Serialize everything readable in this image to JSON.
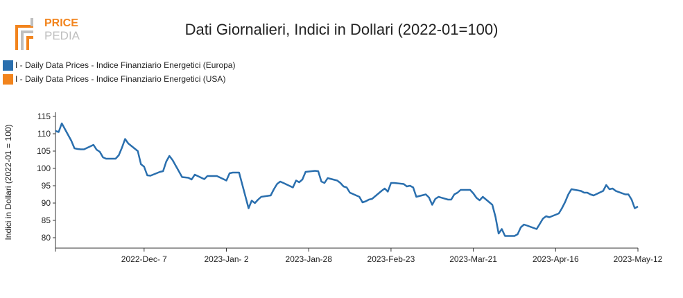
{
  "brand": {
    "line1": "PRICE",
    "line2": "PEDIA"
  },
  "chart_data": {
    "type": "line",
    "title": "Dati Giornalieri, Indici in Dollari (2022-01=100)",
    "ylabel": "Indici in Dollari (2022-01 = 100)",
    "xlabel": "",
    "ylim": [
      77,
      115
    ],
    "yticks": [
      80,
      85,
      90,
      95,
      100,
      105,
      110,
      115
    ],
    "xlim": [
      "2022-11-09",
      "2023-05-12"
    ],
    "xticks": [
      {
        "date": "2022-12-07",
        "label": "2022-Dec- 7"
      },
      {
        "date": "2023-01-02",
        "label": "2023-Jan- 2"
      },
      {
        "date": "2023-01-28",
        "label": "2023-Jan-28"
      },
      {
        "date": "2023-02-23",
        "label": "2023-Feb-23"
      },
      {
        "date": "2023-03-21",
        "label": "2023-Mar-21"
      },
      {
        "date": "2023-04-16",
        "label": "2023-Apr-16"
      },
      {
        "date": "2023-05-12",
        "label": "2023-May-12"
      }
    ],
    "legend_position": "top-left",
    "grid": false,
    "series": [
      {
        "name": "I - Daily Data Prices - Indice Finanziario Energetici (Europa)",
        "color": "#2a6fae",
        "points": [
          [
            "2022-11-09",
            110.8
          ],
          [
            "2022-11-10",
            110.5
          ],
          [
            "2022-11-11",
            113.0
          ],
          [
            "2022-11-14",
            108.0
          ],
          [
            "2022-11-15",
            105.8
          ],
          [
            "2022-11-16",
            105.6
          ],
          [
            "2022-11-17",
            105.5
          ],
          [
            "2022-11-18",
            105.5
          ],
          [
            "2022-11-21",
            106.8
          ],
          [
            "2022-11-22",
            105.4
          ],
          [
            "2022-11-23",
            104.8
          ],
          [
            "2022-11-24",
            103.2
          ],
          [
            "2022-11-25",
            102.8
          ],
          [
            "2022-11-28",
            102.8
          ],
          [
            "2022-11-29",
            103.8
          ],
          [
            "2022-11-30",
            106.0
          ],
          [
            "2022-12-01",
            108.5
          ],
          [
            "2022-12-02",
            107.2
          ],
          [
            "2022-12-05",
            105.0
          ],
          [
            "2022-12-06",
            101.2
          ],
          [
            "2022-12-07",
            100.5
          ],
          [
            "2022-12-08",
            98.0
          ],
          [
            "2022-12-09",
            97.9
          ],
          [
            "2022-12-12",
            99.0
          ],
          [
            "2022-12-13",
            99.2
          ],
          [
            "2022-12-14",
            102.0
          ],
          [
            "2022-12-15",
            103.6
          ],
          [
            "2022-12-16",
            102.4
          ],
          [
            "2022-12-19",
            97.5
          ],
          [
            "2022-12-20",
            97.4
          ],
          [
            "2022-12-21",
            97.3
          ],
          [
            "2022-12-22",
            96.8
          ],
          [
            "2022-12-23",
            98.2
          ],
          [
            "2022-12-26",
            96.9
          ],
          [
            "2022-12-27",
            97.8
          ],
          [
            "2022-12-28",
            97.8
          ],
          [
            "2022-12-29",
            97.8
          ],
          [
            "2022-12-30",
            97.8
          ],
          [
            "2023-01-02",
            96.5
          ],
          [
            "2023-01-03",
            98.6
          ],
          [
            "2023-01-04",
            98.8
          ],
          [
            "2023-01-05",
            98.8
          ],
          [
            "2023-01-06",
            98.8
          ],
          [
            "2023-01-09",
            88.5
          ],
          [
            "2023-01-10",
            90.7
          ],
          [
            "2023-01-11",
            90.0
          ],
          [
            "2023-01-12",
            91.0
          ],
          [
            "2023-01-13",
            91.8
          ],
          [
            "2023-01-16",
            92.2
          ],
          [
            "2023-01-17",
            94.0
          ],
          [
            "2023-01-18",
            95.5
          ],
          [
            "2023-01-19",
            96.2
          ],
          [
            "2023-01-20",
            95.8
          ],
          [
            "2023-01-23",
            94.5
          ],
          [
            "2023-01-24",
            96.5
          ],
          [
            "2023-01-25",
            96.0
          ],
          [
            "2023-01-26",
            96.8
          ],
          [
            "2023-01-27",
            99.0
          ],
          [
            "2023-01-30",
            99.3
          ],
          [
            "2023-01-31",
            99.2
          ],
          [
            "2023-02-01",
            96.2
          ],
          [
            "2023-02-02",
            95.8
          ],
          [
            "2023-02-03",
            97.2
          ],
          [
            "2023-02-06",
            96.5
          ],
          [
            "2023-02-07",
            95.8
          ],
          [
            "2023-02-08",
            94.8
          ],
          [
            "2023-02-09",
            94.5
          ],
          [
            "2023-02-10",
            93.0
          ],
          [
            "2023-02-13",
            91.8
          ],
          [
            "2023-02-14",
            90.2
          ],
          [
            "2023-02-15",
            90.5
          ],
          [
            "2023-02-16",
            91.0
          ],
          [
            "2023-02-17",
            91.2
          ],
          [
            "2023-02-20",
            93.5
          ],
          [
            "2023-02-21",
            94.2
          ],
          [
            "2023-02-22",
            93.3
          ],
          [
            "2023-02-23",
            95.8
          ],
          [
            "2023-02-24",
            95.8
          ],
          [
            "2023-02-27",
            95.5
          ],
          [
            "2023-02-28",
            94.8
          ],
          [
            "2023-03-01",
            95.0
          ],
          [
            "2023-03-02",
            94.5
          ],
          [
            "2023-03-03",
            91.8
          ],
          [
            "2023-03-06",
            92.5
          ],
          [
            "2023-03-07",
            91.6
          ],
          [
            "2023-03-08",
            89.5
          ],
          [
            "2023-03-09",
            91.2
          ],
          [
            "2023-03-10",
            91.8
          ],
          [
            "2023-03-13",
            91.0
          ],
          [
            "2023-03-14",
            91.0
          ],
          [
            "2023-03-15",
            92.5
          ],
          [
            "2023-03-16",
            93.0
          ],
          [
            "2023-03-17",
            93.8
          ],
          [
            "2023-03-20",
            93.8
          ],
          [
            "2023-03-21",
            92.8
          ],
          [
            "2023-03-22",
            91.5
          ],
          [
            "2023-03-23",
            90.8
          ],
          [
            "2023-03-24",
            91.8
          ],
          [
            "2023-03-27",
            89.5
          ],
          [
            "2023-03-28",
            86.0
          ],
          [
            "2023-03-29",
            81.2
          ],
          [
            "2023-03-30",
            82.5
          ],
          [
            "2023-03-31",
            80.5
          ],
          [
            "2023-04-03",
            80.5
          ],
          [
            "2023-04-04",
            81.0
          ],
          [
            "2023-04-05",
            83.0
          ],
          [
            "2023-04-06",
            83.8
          ],
          [
            "2023-04-07",
            83.5
          ],
          [
            "2023-04-10",
            82.5
          ],
          [
            "2023-04-11",
            84.0
          ],
          [
            "2023-04-12",
            85.5
          ],
          [
            "2023-04-13",
            86.2
          ],
          [
            "2023-04-14",
            85.9
          ],
          [
            "2023-04-17",
            87.0
          ],
          [
            "2023-04-18",
            88.5
          ],
          [
            "2023-04-19",
            90.3
          ],
          [
            "2023-04-20",
            92.5
          ],
          [
            "2023-04-21",
            94.0
          ],
          [
            "2023-04-24",
            93.5
          ],
          [
            "2023-04-25",
            93.0
          ],
          [
            "2023-04-26",
            93.0
          ],
          [
            "2023-04-27",
            92.5
          ],
          [
            "2023-04-28",
            92.2
          ],
          [
            "2023-05-01",
            93.5
          ],
          [
            "2023-05-02",
            95.2
          ],
          [
            "2023-05-03",
            94.0
          ],
          [
            "2023-05-04",
            94.2
          ],
          [
            "2023-05-05",
            93.5
          ],
          [
            "2023-05-08",
            92.5
          ],
          [
            "2023-05-09",
            92.5
          ],
          [
            "2023-05-10",
            91.0
          ],
          [
            "2023-05-11",
            88.5
          ],
          [
            "2023-05-12",
            89.0
          ]
        ]
      },
      {
        "name": "I - Daily Data Prices - Indice Finanziario Energetici (USA)",
        "color": "#f2841d",
        "points": []
      }
    ]
  }
}
